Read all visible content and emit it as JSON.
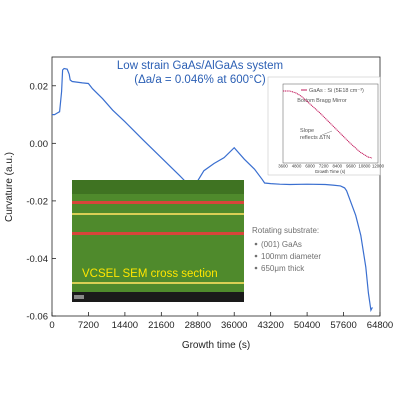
{
  "chart_data": {
    "type": "line",
    "title_lines": [
      "Low strain GaAs/AlGaAs system",
      "(Δa/a = 0.046% at 600°C)"
    ],
    "xlabel": "Growth time (s)",
    "ylabel": "Curvature (a.u.)",
    "xlim": [
      0,
      64800
    ],
    "ylim": [
      -0.06,
      0.03
    ],
    "x_ticks": [
      0,
      7200,
      14400,
      21600,
      28800,
      36000,
      43200,
      50400,
      57600,
      64800
    ],
    "x_tick_labels": [
      "0",
      "7200",
      "14400",
      "21600",
      "28800",
      "36000",
      "43200",
      "50400",
      "57600",
      "64800"
    ],
    "y_ticks": [
      0.02,
      0.0,
      -0.02,
      -0.04,
      -0.06
    ],
    "y_tick_labels": [
      "0.02",
      "0.00",
      "-0.02",
      "-0.04",
      "-0.06"
    ],
    "grid": false,
    "line_color": "#3a6fd0",
    "series": [
      {
        "x": [
          0,
          500,
          1000,
          1500,
          1900,
          2100,
          2400,
          3000,
          3400,
          3600,
          4000,
          6000,
          7200,
          8000,
          10000,
          12000,
          14400,
          18000,
          21600,
          25200,
          28000,
          28800,
          30000,
          32000,
          34000,
          36000,
          38000,
          40000,
          41500,
          42000,
          43200,
          45000,
          47000,
          50400,
          54000,
          55500,
          57000,
          57800,
          58200,
          60000,
          61000,
          62000,
          62500,
          63000,
          63300
        ],
        "y": [
          0.01,
          0.01,
          0.0105,
          0.011,
          0.018,
          0.0255,
          0.026,
          0.0258,
          0.024,
          0.022,
          0.0215,
          0.021,
          0.0208,
          0.019,
          0.0155,
          0.0115,
          0.0075,
          0.0012,
          -0.005,
          -0.0112,
          -0.0162,
          -0.013,
          -0.0095,
          -0.007,
          -0.005,
          -0.0015,
          -0.0055,
          -0.009,
          -0.0125,
          -0.0138,
          -0.014,
          -0.0142,
          -0.0143,
          -0.0142,
          -0.0143,
          -0.0145,
          -0.0148,
          -0.0155,
          -0.0165,
          -0.025,
          -0.032,
          -0.043,
          -0.052,
          -0.058,
          -0.057
        ]
      }
    ],
    "inset": {
      "x_ticks": [
        "3600",
        "4800",
        "6000",
        "7200",
        "8400",
        "9600",
        "10800",
        "12000"
      ],
      "xlabel": "Growth Time (s)",
      "legend": "GaAs : Si (5E18 cm⁻³)",
      "label": "Bottom Bragg Mirror",
      "slope_note": [
        "Slope",
        "reflects ΔTN"
      ]
    },
    "photo": {
      "label": "VCSEL SEM cross section"
    },
    "substrate_note": {
      "title": "Rotating substrate:",
      "items": [
        "(001) GaAs",
        "100mm diameter",
        "650μm thick"
      ]
    }
  }
}
